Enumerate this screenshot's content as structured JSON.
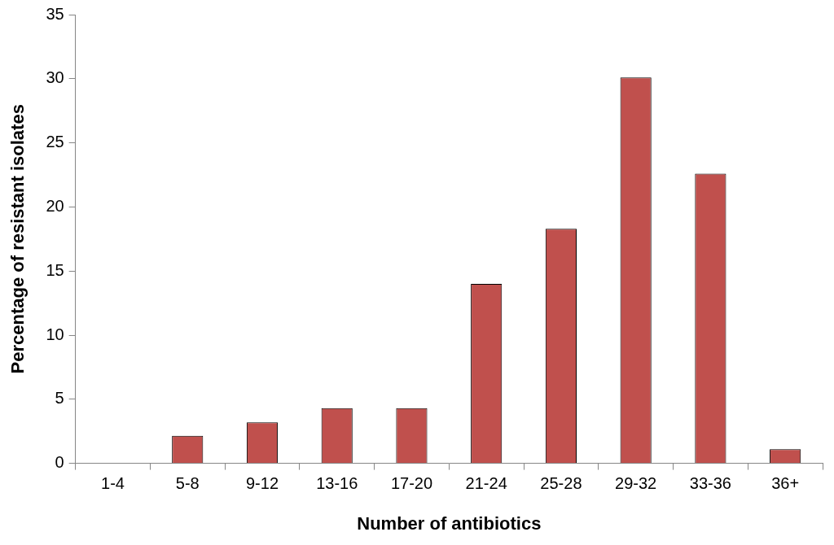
{
  "chart_data": {
    "type": "bar",
    "x_label": "Number of antibiotics",
    "y_label": "Percentage of resistant isolates",
    "categories": [
      "1-4",
      "5-8",
      "9-12",
      "13-16",
      "17-20",
      "21-24",
      "25-28",
      "29-32",
      "33-36",
      "36+"
    ],
    "values": [
      0,
      2.15,
      3.2,
      4.3,
      4.3,
      14.0,
      18.3,
      30.1,
      22.6,
      1.1
    ],
    "color": "#c0504d",
    "ylim": [
      0,
      35
    ],
    "yticks": [
      0,
      5,
      10,
      15,
      20,
      25,
      30,
      35
    ],
    "grid": false
  }
}
